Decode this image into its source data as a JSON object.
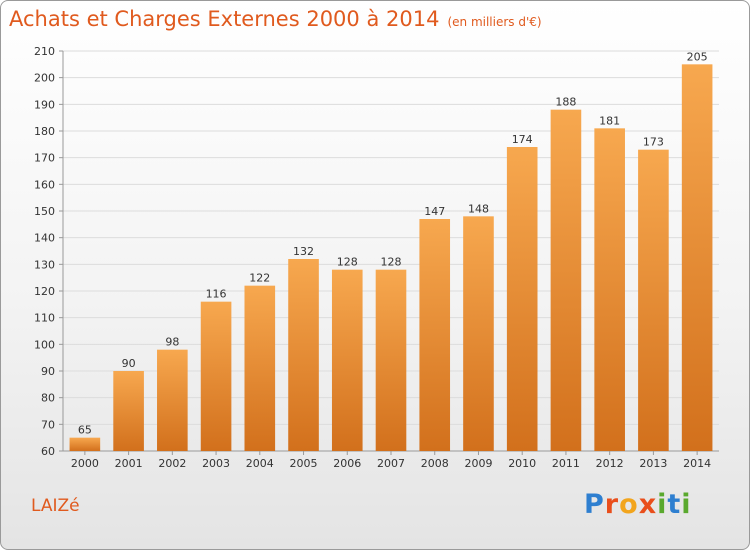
{
  "title": "Achats et Charges Externes 2000 à 2014",
  "unit_note": "(en milliers d'€)",
  "commune": "LAIZé",
  "logo": {
    "text": "Proxiti",
    "colors": [
      "#2e7fd0",
      "#e94e1b",
      "#f2a51d",
      "#e94e1b",
      "#5aa92e",
      "#2e7fd0",
      "#5aa92e"
    ]
  },
  "colors": {
    "title": "#e05a1e",
    "bar_top": "#f7a84f",
    "bar_bottom": "#d2701c",
    "grid": "#dcdcdc",
    "axis": "#999999",
    "text": "#333333"
  },
  "chart_data": {
    "type": "bar",
    "categories": [
      "2000",
      "2001",
      "2002",
      "2003",
      "2004",
      "2005",
      "2006",
      "2007",
      "2008",
      "2009",
      "2010",
      "2011",
      "2012",
      "2013",
      "2014"
    ],
    "values": [
      65,
      90,
      98,
      116,
      122,
      132,
      128,
      128,
      147,
      148,
      174,
      188,
      181,
      173,
      205
    ],
    "ylim": [
      60,
      210
    ],
    "yticks": [
      60,
      70,
      80,
      90,
      100,
      110,
      120,
      130,
      140,
      150,
      160,
      170,
      180,
      190,
      200,
      210
    ],
    "grid": true,
    "data_labels": true
  }
}
